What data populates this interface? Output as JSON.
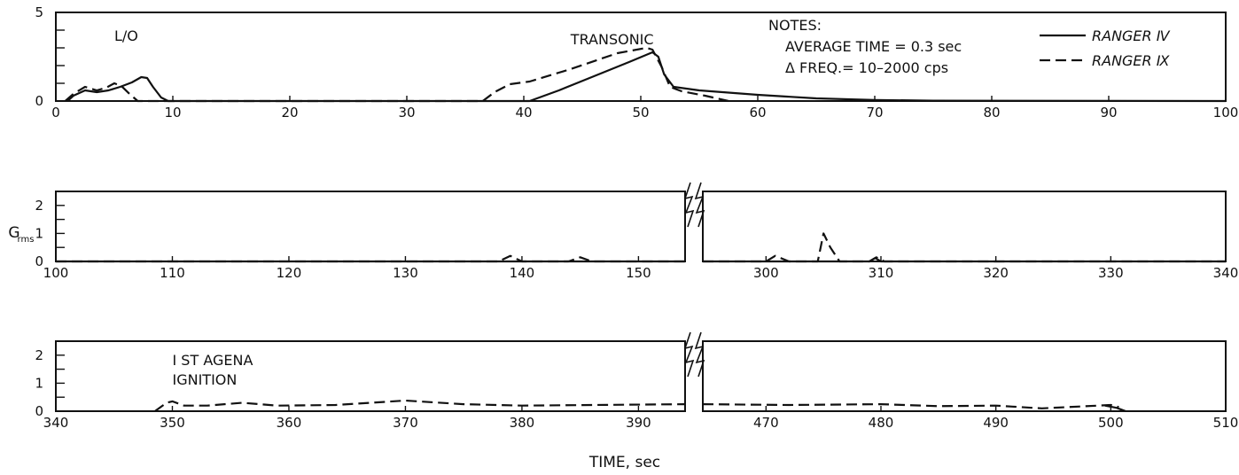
{
  "chart_data": {
    "type": "line",
    "y_axis_label_main": "G",
    "y_axis_label_sub": "rms",
    "x_axis_label": "TIME, sec",
    "legend": {
      "placement": "top-right",
      "entries": [
        {
          "name": "RANGER Ⅳ",
          "style": "solid"
        },
        {
          "name": "RANGER Ⅸ",
          "style": "dashed"
        }
      ]
    },
    "notes": {
      "title": "NOTES:",
      "lines": [
        "AVERAGE  TIME = 0.3 sec",
        "Δ FREQ.= 10–2000 cps"
      ]
    },
    "panels": [
      {
        "id": "panel1",
        "ylim": [
          0,
          5
        ],
        "y_ticks": [
          0,
          1,
          2,
          3,
          4,
          5
        ],
        "y_tick_labels": [
          "0",
          "5"
        ],
        "segments": [
          {
            "xlim": [
              0,
              100
            ],
            "x_tick_labels": [
              "0",
              "10",
              "20",
              "30",
              "40",
              "50",
              "60",
              "70",
              "80",
              "90",
              "100"
            ]
          }
        ],
        "annotations": [
          {
            "text": "L/O",
            "x": 5,
            "y": 3.4
          },
          {
            "text": "TRANSONIC",
            "x": 44,
            "y": 3.2
          }
        ],
        "series": [
          {
            "name": "RANGER Ⅳ",
            "style": "solid",
            "segment": 0,
            "points": [
              [
                1,
                0
              ],
              [
                1.5,
                0.3
              ],
              [
                2.5,
                0.6
              ],
              [
                3.5,
                0.5
              ],
              [
                4.5,
                0.6
              ],
              [
                5.5,
                0.8
              ],
              [
                6.5,
                1.05
              ],
              [
                7.3,
                1.35
              ],
              [
                7.8,
                1.3
              ],
              [
                8.3,
                0.8
              ],
              [
                9,
                0.2
              ],
              [
                9.6,
                0
              ],
              [
                40.5,
                0
              ],
              [
                43,
                0.6
              ],
              [
                46,
                1.4
              ],
              [
                49,
                2.2
              ],
              [
                51,
                2.75
              ],
              [
                51.5,
                2.5
              ],
              [
                52,
                1.5
              ],
              [
                52.8,
                0.8
              ],
              [
                55,
                0.6
              ],
              [
                60,
                0.35
              ],
              [
                65,
                0.15
              ],
              [
                70,
                0.06
              ],
              [
                75,
                0.02
              ],
              [
                100,
                0
              ]
            ]
          },
          {
            "name": "RANGER Ⅸ",
            "style": "dashed",
            "segment": 0,
            "points": [
              [
                0.8,
                0
              ],
              [
                1.5,
                0.4
              ],
              [
                2.5,
                0.8
              ],
              [
                3.5,
                0.6
              ],
              [
                4.3,
                0.75
              ],
              [
                5,
                1.0
              ],
              [
                5.6,
                0.85
              ],
              [
                6.3,
                0.4
              ],
              [
                7,
                0
              ],
              [
                36.5,
                0
              ],
              [
                37.5,
                0.5
              ],
              [
                38.8,
                0.95
              ],
              [
                40.5,
                1.1
              ],
              [
                44,
                1.8
              ],
              [
                48,
                2.7
              ],
              [
                50.5,
                3.0
              ],
              [
                51,
                2.9
              ],
              [
                51.8,
                1.9
              ],
              [
                52.5,
                0.8
              ],
              [
                53.5,
                0.55
              ],
              [
                55.5,
                0.3
              ],
              [
                57.5,
                0
              ]
            ]
          }
        ]
      },
      {
        "id": "panel2",
        "ylim": [
          0,
          2.5
        ],
        "y_ticks": [
          0,
          0.5,
          1,
          1.5,
          2
        ],
        "y_tick_labels": [
          "0",
          "1",
          "2"
        ],
        "segments": [
          {
            "xlim": [
              100,
              154
            ],
            "x_tick_labels": [
              "100",
              "110",
              "120",
              "130",
              "140",
              "150"
            ]
          },
          {
            "xlim": [
              294.5,
              340
            ],
            "x_tick_labels": [
              "300",
              "310",
              "320",
              "330",
              "340"
            ]
          }
        ],
        "annotations": [],
        "series": [
          {
            "name": "RANGER Ⅳ",
            "style": "solid",
            "segment": 0,
            "points": [
              [
                100,
                0
              ],
              [
                154,
                0
              ]
            ]
          },
          {
            "name": "RANGER Ⅳ",
            "style": "solid",
            "segment": 1,
            "points": [
              [
                294.5,
                0
              ],
              [
                309,
                0
              ],
              [
                309.5,
                0.12
              ],
              [
                310,
                0
              ],
              [
                340,
                0
              ]
            ]
          },
          {
            "name": "RANGER Ⅸ",
            "style": "dashed",
            "segment": 0,
            "points": [
              [
                100,
                0
              ],
              [
                138,
                0
              ],
              [
                139,
                0.2
              ],
              [
                140,
                0
              ],
              [
                144,
                0
              ],
              [
                145,
                0.15
              ],
              [
                146,
                0
              ],
              [
                154,
                0
              ]
            ]
          },
          {
            "name": "RANGER Ⅸ",
            "style": "dashed",
            "segment": 1,
            "points": [
              [
                294.5,
                0
              ],
              [
                300,
                0
              ],
              [
                300.8,
                0.2
              ],
              [
                302,
                0
              ],
              [
                304.5,
                0
              ],
              [
                305,
                1.0
              ],
              [
                305.6,
                0.5
              ],
              [
                306.4,
                0
              ],
              [
                309,
                0
              ],
              [
                309.6,
                0.15
              ],
              [
                310.3,
                0
              ],
              [
                340,
                0
              ]
            ]
          }
        ]
      },
      {
        "id": "panel3",
        "ylim": [
          0,
          2.5
        ],
        "y_ticks": [
          0,
          0.5,
          1,
          1.5,
          2
        ],
        "y_tick_labels": [
          "0",
          "1",
          "2"
        ],
        "segments": [
          {
            "xlim": [
              340,
              394
            ],
            "x_tick_labels": [
              "340",
              "350",
              "360",
              "370",
              "380",
              "390"
            ]
          },
          {
            "xlim": [
              464.5,
              510
            ],
            "x_tick_labels": [
              "470",
              "480",
              "490",
              "500",
              "510"
            ]
          }
        ],
        "annotations": [
          {
            "text": "I ST  AGENA",
            "x": 350,
            "y": 1.65
          },
          {
            "text": "IGNITION",
            "x": 350,
            "y": 0.95
          }
        ],
        "series": [
          {
            "name": "RANGER Ⅳ",
            "style": "solid",
            "segment": 1,
            "points": [
              [
                499.5,
                0.2
              ],
              [
                500.5,
                0.12
              ],
              [
                501.3,
                0
              ]
            ]
          },
          {
            "name": "RANGER Ⅸ",
            "style": "dashed",
            "segment": 0,
            "points": [
              [
                348.5,
                0
              ],
              [
                349.5,
                0.3
              ],
              [
                350,
                0.35
              ],
              [
                351,
                0.2
              ],
              [
                353,
                0.2
              ],
              [
                356,
                0.3
              ],
              [
                359,
                0.2
              ],
              [
                364,
                0.22
              ],
              [
                370,
                0.38
              ],
              [
                375,
                0.25
              ],
              [
                380,
                0.2
              ],
              [
                394,
                0.25
              ]
            ]
          },
          {
            "name": "RANGER Ⅸ",
            "style": "dashed",
            "segment": 1,
            "points": [
              [
                464.5,
                0.25
              ],
              [
                472,
                0.22
              ],
              [
                480,
                0.25
              ],
              [
                485,
                0.18
              ],
              [
                490,
                0.2
              ],
              [
                494,
                0.1
              ],
              [
                500,
                0.22
              ],
              [
                500.7,
                0.15
              ]
            ]
          }
        ]
      }
    ]
  }
}
